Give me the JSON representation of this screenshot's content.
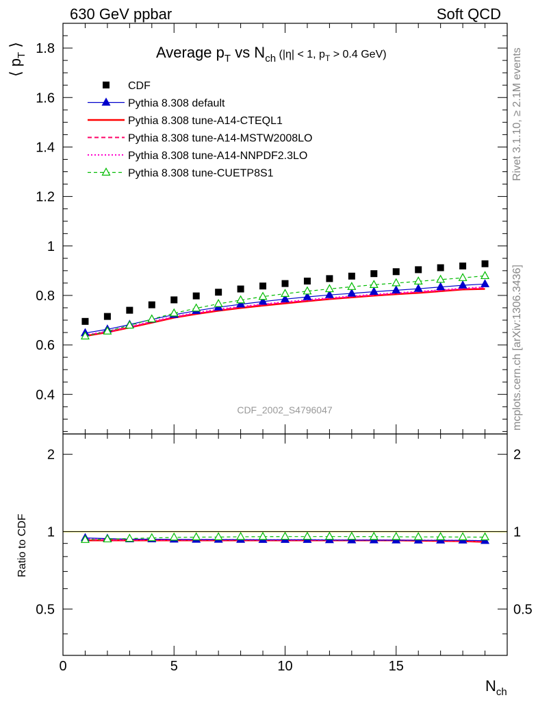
{
  "header": {
    "left": "630 GeV ppbar",
    "right": "Soft QCD"
  },
  "side_labels": {
    "rivet": "Rivet 3.1.10, ≥ 2.1M events",
    "mcplots": "mcplots.cern.ch [arXiv:1306.3436]"
  },
  "chart_data": {
    "type": "scatter",
    "title": {
      "main": "Average p",
      "main_sub": "T",
      "mid": " vs N",
      "mid_sub": "ch",
      "cut_open": " (|η| < 1, p",
      "cut_sub": "T",
      "cut_close": " > 0.4 GeV)"
    },
    "ylabel": {
      "open": "⟨ p",
      "sub": "T",
      "close": " ⟩"
    },
    "ratio_ylabel": "Ratio to CDF",
    "xlabel": {
      "main": "N",
      "sub": "ch"
    },
    "watermark": "CDF_2002_S4796047",
    "xlim": [
      0,
      20
    ],
    "ylim": [
      0.24,
      1.9
    ],
    "ratio_ylim": [
      0.33,
      2.4
    ],
    "x_ticks": [
      "0",
      "5",
      "10",
      "15"
    ],
    "y_ticks": [
      "0.4",
      "0.6",
      "0.8",
      "1",
      "1.2",
      "1.4",
      "1.6",
      "1.8"
    ],
    "ratio_ticks": [
      "0.5",
      "1",
      "2"
    ],
    "x": [
      1,
      2,
      3,
      4,
      5,
      6,
      7,
      8,
      9,
      10,
      11,
      12,
      13,
      14,
      15,
      16,
      17,
      18,
      19
    ],
    "series": [
      {
        "name": "CDF",
        "color": "#000000",
        "style": "data",
        "values": [
          0.695,
          0.715,
          0.74,
          0.762,
          0.782,
          0.798,
          0.813,
          0.826,
          0.838,
          0.848,
          0.858,
          0.868,
          0.878,
          0.888,
          0.896,
          0.904,
          0.912,
          0.919,
          0.928
        ],
        "ratio": [
          1,
          1,
          1,
          1,
          1,
          1,
          1,
          1,
          1,
          1,
          1,
          1,
          1,
          1,
          1,
          1,
          1,
          1,
          1
        ]
      },
      {
        "name": "Pythia 8.308 default",
        "color": "#0000cc",
        "style": "solid-triangle",
        "values": [
          0.648,
          0.663,
          0.682,
          0.703,
          0.722,
          0.738,
          0.752,
          0.764,
          0.775,
          0.785,
          0.794,
          0.802,
          0.808,
          0.815,
          0.821,
          0.827,
          0.834,
          0.841,
          0.846
        ],
        "ratio": [
          0.945,
          0.94,
          0.935,
          0.935,
          0.933,
          0.932,
          0.932,
          0.931,
          0.93,
          0.93,
          0.93,
          0.928,
          0.927,
          0.927,
          0.926,
          0.925,
          0.925,
          0.925,
          0.922
        ]
      },
      {
        "name": "Pythia 8.308 tune-A14-CTEQL1",
        "color": "#ff0000",
        "style": "solid-thick",
        "values": [
          0.636,
          0.651,
          0.67,
          0.69,
          0.71,
          0.725,
          0.738,
          0.749,
          0.759,
          0.768,
          0.777,
          0.785,
          0.792,
          0.799,
          0.805,
          0.81,
          0.817,
          0.824,
          0.826
        ],
        "ratio": [
          0.925,
          0.925,
          0.925,
          0.925,
          0.925,
          0.925,
          0.925,
          0.925,
          0.925,
          0.925,
          0.925,
          0.925,
          0.925,
          0.925,
          0.925,
          0.922,
          0.92,
          0.918,
          0.912
        ]
      },
      {
        "name": "Pythia 8.308 tune-A14-MSTW2008LO",
        "color": "#ff0066",
        "style": "dashed",
        "values": [
          0.638,
          0.653,
          0.672,
          0.692,
          0.712,
          0.727,
          0.741,
          0.752,
          0.762,
          0.771,
          0.779,
          0.787,
          0.794,
          0.801,
          0.807,
          0.813,
          0.819,
          0.826,
          0.83
        ],
        "ratio": [
          0.93,
          0.928,
          0.928,
          0.928,
          0.928,
          0.928,
          0.928,
          0.928,
          0.927,
          0.927,
          0.927,
          0.926,
          0.926,
          0.925,
          0.925,
          0.924,
          0.923,
          0.922,
          0.918
        ]
      },
      {
        "name": "Pythia 8.308 tune-A14-NNPDF2.3LO",
        "color": "#ff00cc",
        "style": "dotted",
        "values": [
          0.64,
          0.655,
          0.674,
          0.695,
          0.714,
          0.73,
          0.744,
          0.755,
          0.765,
          0.774,
          0.782,
          0.79,
          0.797,
          0.804,
          0.81,
          0.816,
          0.822,
          0.829,
          0.834
        ],
        "ratio": [
          0.935,
          0.932,
          0.93,
          0.93,
          0.93,
          0.93,
          0.93,
          0.93,
          0.929,
          0.929,
          0.929,
          0.928,
          0.928,
          0.928,
          0.927,
          0.926,
          0.925,
          0.924,
          0.92
        ]
      },
      {
        "name": "Pythia 8.308 tune-CUETP8S1",
        "color": "#00bb00",
        "style": "dashed-triangle",
        "values": [
          0.635,
          0.655,
          0.679,
          0.704,
          0.728,
          0.748,
          0.766,
          0.781,
          0.795,
          0.807,
          0.817,
          0.826,
          0.835,
          0.843,
          0.85,
          0.857,
          0.864,
          0.871,
          0.879
        ],
        "ratio": [
          0.93,
          0.935,
          0.94,
          0.945,
          0.95,
          0.952,
          0.953,
          0.955,
          0.956,
          0.957,
          0.957,
          0.957,
          0.957,
          0.956,
          0.955,
          0.954,
          0.954,
          0.953,
          0.952
        ]
      }
    ]
  }
}
